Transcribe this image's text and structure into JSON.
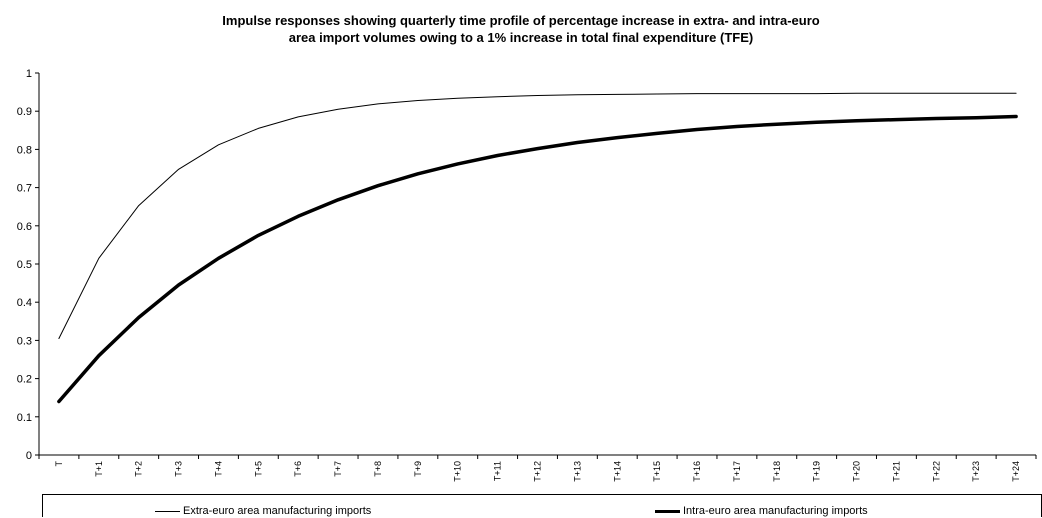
{
  "chart_data": {
    "type": "line",
    "title_line1": "Impulse responses showing quarterly time profile of percentage increase in extra- and intra-euro",
    "title_line2": "area import volumes owing to a 1% increase in total final expenditure (TFE)",
    "xlabel": "",
    "ylabel": "",
    "ylim": [
      0,
      1
    ],
    "yticks": [
      "0",
      "0.1",
      "0.2",
      "0.3",
      "0.4",
      "0.5",
      "0.6",
      "0.7",
      "0.8",
      "0.9",
      "1"
    ],
    "categories": [
      "T",
      "T+1",
      "T+2",
      "T+3",
      "T+4",
      "T+5",
      "T+6",
      "T+7",
      "T+8",
      "T+9",
      "T+10",
      "T+11",
      "T+12",
      "T+13",
      "T+14",
      "T+15",
      "T+16",
      "T+17",
      "T+18",
      "T+19",
      "T+20",
      "T+21",
      "T+22",
      "T+23",
      "T+24"
    ],
    "grid": false,
    "legend_position": "bottom",
    "series": [
      {
        "name": "Extra-euro area manufacturing imports",
        "style": "thin",
        "color": "#000000",
        "values": [
          0.305,
          0.515,
          0.653,
          0.748,
          0.812,
          0.855,
          0.885,
          0.905,
          0.919,
          0.928,
          0.934,
          0.938,
          0.941,
          0.943,
          0.944,
          0.945,
          0.946,
          0.946,
          0.946,
          0.946,
          0.947,
          0.947,
          0.947,
          0.947,
          0.947
        ]
      },
      {
        "name": "Intra-euro area manufacturing imports",
        "style": "thick",
        "color": "#000000",
        "values": [
          0.14,
          0.26,
          0.36,
          0.445,
          0.515,
          0.575,
          0.625,
          0.668,
          0.705,
          0.736,
          0.762,
          0.784,
          0.802,
          0.818,
          0.831,
          0.842,
          0.852,
          0.86,
          0.866,
          0.871,
          0.875,
          0.878,
          0.881,
          0.883,
          0.886
        ]
      }
    ]
  }
}
